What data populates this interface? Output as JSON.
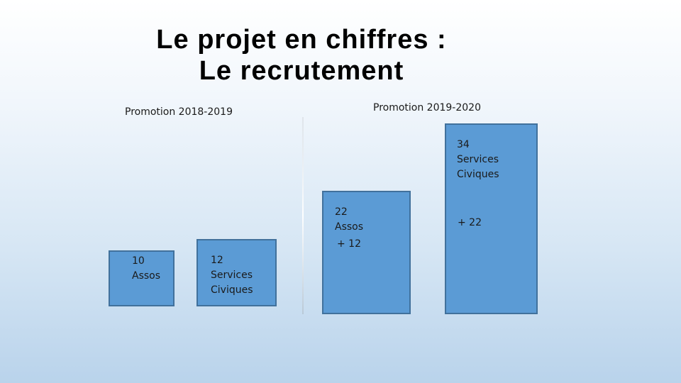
{
  "title": {
    "line1": "Le projet en chiffres :",
    "line2": "Le recrutement"
  },
  "promotions": {
    "left": "Promotion 2018-2019",
    "right": "Promotion 2019-2020"
  },
  "colors": {
    "bar_fill": "#5b9bd5",
    "bar_border": "#41719c"
  },
  "chart_data": {
    "type": "bar",
    "groups": [
      "Promotion 2018-2019",
      "Promotion 2019-2020"
    ],
    "series": [
      {
        "name": "Assos",
        "values": [
          10,
          22
        ]
      },
      {
        "name": "Services Civiques",
        "values": [
          12,
          34
        ]
      }
    ],
    "labels": {
      "assos_2018": "10\nAssos",
      "sc_2018": "12\nServices\nCiviques",
      "assos_2019": "22\nAssos",
      "sc_2019": "34\nServices\nCiviques",
      "delta_assos": "+ 12",
      "delta_sc": "+ 22"
    }
  }
}
